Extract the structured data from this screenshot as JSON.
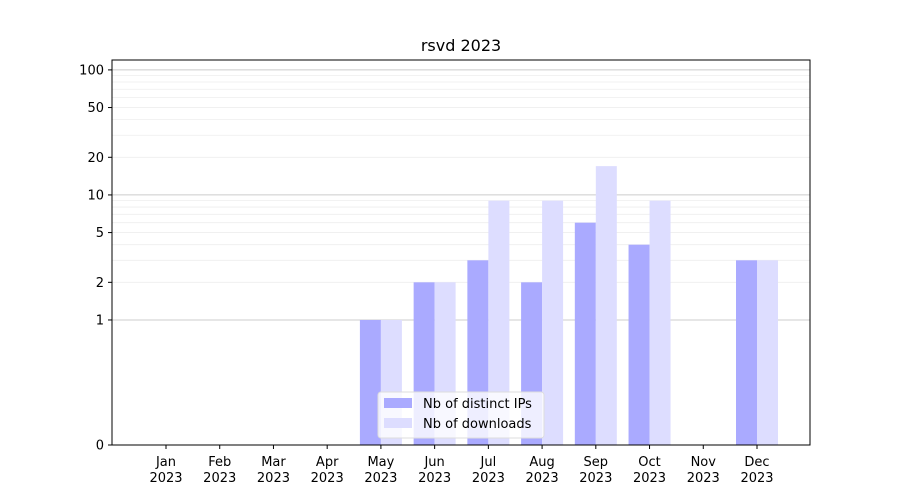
{
  "chart_data": {
    "type": "bar",
    "title": "rsvd 2023",
    "xlabel": "",
    "ylabel": "",
    "y_scale": "symlog",
    "ylim": [
      0,
      120
    ],
    "y_ticks": [
      0,
      1,
      2,
      5,
      10,
      20,
      50,
      100
    ],
    "y_tick_labels": [
      "0",
      "1",
      "2",
      "5",
      "10",
      "20",
      "50",
      "100"
    ],
    "categories": [
      "Jan\n2023",
      "Feb\n2023",
      "Mar\n2023",
      "Apr\n2023",
      "May\n2023",
      "Jun\n2023",
      "Jul\n2023",
      "Aug\n2023",
      "Sep\n2023",
      "Oct\n2023",
      "Nov\n2023",
      "Dec\n2023"
    ],
    "category_lines": [
      [
        "Jan",
        "2023"
      ],
      [
        "Feb",
        "2023"
      ],
      [
        "Mar",
        "2023"
      ],
      [
        "Apr",
        "2023"
      ],
      [
        "May",
        "2023"
      ],
      [
        "Jun",
        "2023"
      ],
      [
        "Jul",
        "2023"
      ],
      [
        "Aug",
        "2023"
      ],
      [
        "Sep",
        "2023"
      ],
      [
        "Oct",
        "2023"
      ],
      [
        "Nov",
        "2023"
      ],
      [
        "Dec",
        "2023"
      ]
    ],
    "series": [
      {
        "name": "Nb of distinct IPs",
        "color": "#aaaaff",
        "values": [
          0,
          0,
          0,
          0,
          1,
          2,
          3,
          2,
          6,
          4,
          0,
          3
        ]
      },
      {
        "name": "Nb of downloads",
        "color": "#ddddff",
        "values": [
          0,
          0,
          0,
          0,
          1,
          2,
          9,
          9,
          17,
          9,
          0,
          3
        ]
      }
    ],
    "grid": true,
    "legend_position": "lower-center"
  }
}
